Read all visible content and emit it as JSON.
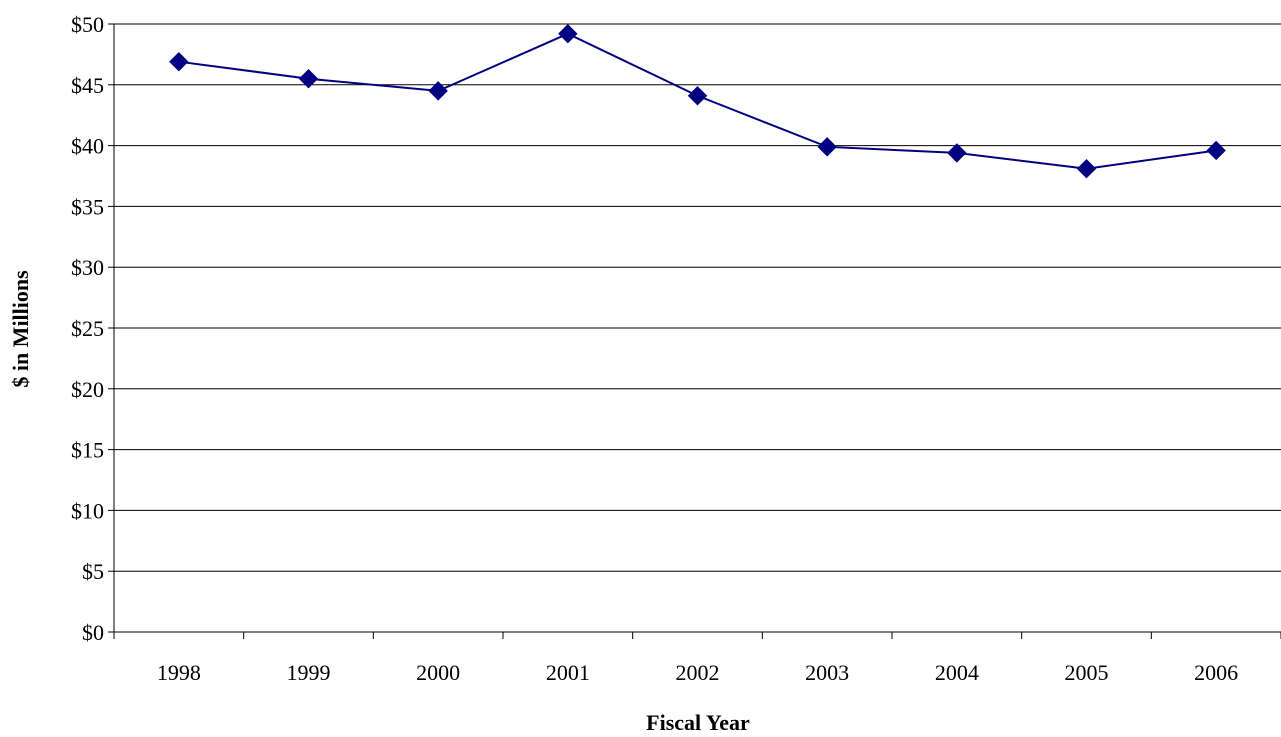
{
  "chart_data": {
    "type": "line",
    "title": "",
    "xlabel": "Fiscal Year",
    "ylabel": "$ in Millions",
    "categories": [
      "1998",
      "1999",
      "2000",
      "2001",
      "2002",
      "2003",
      "2004",
      "2005",
      "2006"
    ],
    "series": [
      {
        "values": [
          46.9,
          45.5,
          44.5,
          49.2,
          44.1,
          39.9,
          39.4,
          38.1,
          39.6
        ],
        "color": "#000080",
        "marker": "diamond"
      }
    ],
    "ylim": [
      0,
      50
    ],
    "yticks": [
      0,
      5,
      10,
      15,
      20,
      25,
      30,
      35,
      40,
      45,
      50
    ],
    "ytick_labels": [
      "$0",
      "$5",
      "$10",
      "$15",
      "$20",
      "$25",
      "$30",
      "$35",
      "$40",
      "$45",
      "$50"
    ],
    "grid": true,
    "legend": "none"
  }
}
